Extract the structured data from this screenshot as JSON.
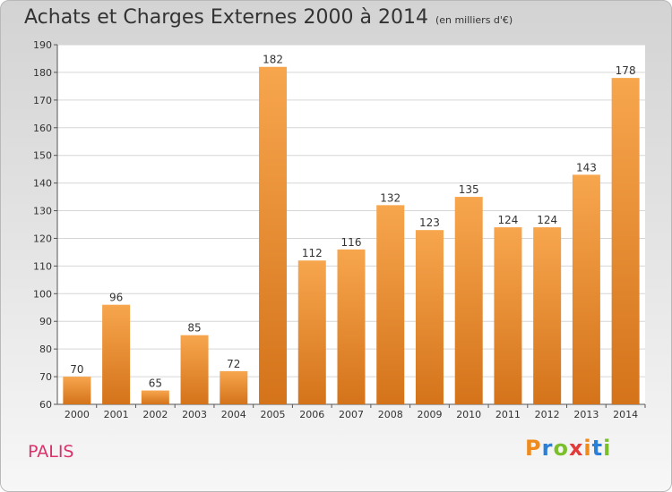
{
  "header": {
    "title": "Achats et Charges Externes 2000 à 2014",
    "subtitle": "(en milliers d'€)"
  },
  "footer": {
    "commune": "PALIS",
    "logo_letters": [
      "P",
      "r",
      "o",
      "x",
      "i",
      "t",
      "i"
    ],
    "logo_colors": [
      "#ef8a1c",
      "#2b7fd6",
      "#7cbf2c",
      "#e33a3a",
      "#ef8a1c",
      "#2b7fd6",
      "#7cbf2c"
    ]
  },
  "chart_data": {
    "type": "bar",
    "title": "Achats et Charges Externes 2000 à 2014",
    "subtitle": "(en milliers d'€)",
    "categories": [
      "2000",
      "2001",
      "2002",
      "2003",
      "2004",
      "2005",
      "2006",
      "2007",
      "2008",
      "2009",
      "2010",
      "2011",
      "2012",
      "2013",
      "2014"
    ],
    "values": [
      70,
      96,
      65,
      85,
      72,
      182,
      112,
      116,
      132,
      123,
      135,
      124,
      124,
      143,
      178
    ],
    "ylim": [
      60,
      190
    ],
    "yticks": [
      60,
      70,
      80,
      90,
      100,
      110,
      120,
      130,
      140,
      150,
      160,
      170,
      180,
      190
    ],
    "grid": true,
    "bar_color_top": "#f7a64e",
    "bar_color_bottom": "#d4731a"
  }
}
